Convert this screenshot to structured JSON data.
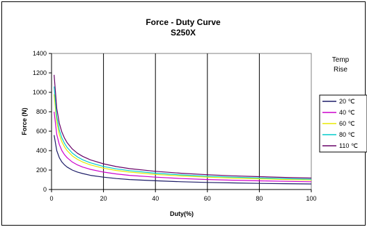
{
  "chart_data": {
    "type": "line",
    "title": "Force - Duty Curve",
    "subtitle": "S250X",
    "xlabel": "Duty(%)",
    "ylabel": "Force (N)",
    "xlim": [
      0,
      100
    ],
    "ylim": [
      0,
      1400
    ],
    "x_ticks": [
      "0",
      "20",
      "40",
      "60",
      "80",
      "100"
    ],
    "y_ticks": [
      "0",
      "200",
      "400",
      "600",
      "800",
      "1000",
      "1200",
      "1400"
    ],
    "grid": "vertical",
    "legend_title_line1": "Temp",
    "legend_title_line2": "Rise",
    "legend_position": "right",
    "x": [
      1,
      2,
      3,
      4,
      5,
      6,
      8,
      10,
      12,
      15,
      20,
      25,
      30,
      40,
      50,
      60,
      70,
      80,
      90,
      100
    ],
    "series": [
      {
        "name": "20 ℃",
        "color": "#1a1a66",
        "values": [
          560,
          400,
          327,
          283,
          253,
          231,
          200,
          179,
          164,
          146,
          127,
          113,
          103,
          90,
          80,
          73,
          68,
          63,
          60,
          57
        ]
      },
      {
        "name": "40 ℃",
        "color": "#cc00cc",
        "values": [
          800,
          566,
          462,
          400,
          358,
          327,
          283,
          253,
          231,
          207,
          179,
          160,
          146,
          127,
          113,
          103,
          96,
          89,
          84,
          80
        ]
      },
      {
        "name": "60 ℃",
        "color": "#e8e800",
        "values": [
          980,
          693,
          566,
          490,
          438,
          400,
          346,
          310,
          283,
          253,
          219,
          196,
          179,
          155,
          139,
          127,
          117,
          110,
          103,
          98
        ]
      },
      {
        "name": "80 ℃",
        "color": "#00cccc",
        "values": [
          1060,
          750,
          612,
          530,
          474,
          433,
          375,
          335,
          306,
          274,
          237,
          212,
          194,
          168,
          150,
          137,
          127,
          119,
          112,
          106
        ]
      },
      {
        "name": "110 ℃",
        "color": "#660066",
        "values": [
          1180,
          834,
          681,
          590,
          528,
          482,
          417,
          373,
          341,
          305,
          264,
          236,
          215,
          187,
          167,
          152,
          141,
          132,
          124,
          118
        ]
      }
    ]
  }
}
